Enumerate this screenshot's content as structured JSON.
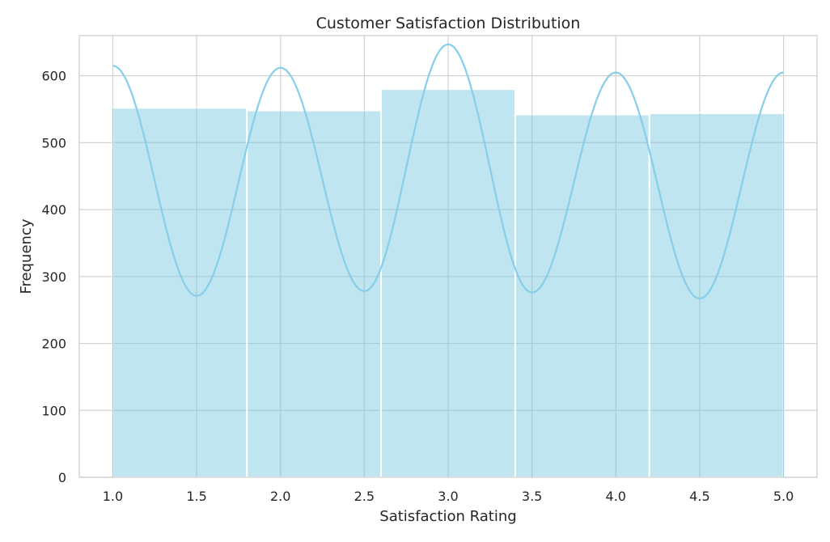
{
  "chart_data": {
    "type": "bar",
    "title": "Customer Satisfaction Distribution",
    "xlabel": "Satisfaction Rating",
    "ylabel": "Frequency",
    "xlim": [
      0.8,
      5.2
    ],
    "ylim": [
      0,
      660
    ],
    "xticks": [
      1.0,
      1.5,
      2.0,
      2.5,
      3.0,
      3.5,
      4.0,
      4.5,
      5.0
    ],
    "xtick_labels": [
      "1.0",
      "1.5",
      "2.0",
      "2.5",
      "3.0",
      "3.5",
      "4.0",
      "4.5",
      "5.0"
    ],
    "yticks": [
      0,
      100,
      200,
      300,
      400,
      500,
      600
    ],
    "ytick_labels": [
      "0",
      "100",
      "200",
      "300",
      "400",
      "500",
      "600"
    ],
    "grid": true,
    "bins": [
      {
        "x0": 1.0,
        "x1": 1.8,
        "value": 552
      },
      {
        "x0": 1.8,
        "x1": 2.6,
        "value": 548
      },
      {
        "x0": 2.6,
        "x1": 3.4,
        "value": 580
      },
      {
        "x0": 3.4,
        "x1": 4.2,
        "value": 542
      },
      {
        "x0": 4.2,
        "x1": 5.0,
        "value": 544
      }
    ],
    "kde": {
      "x": [
        1.0,
        1.5,
        2.0,
        2.5,
        3.0,
        3.5,
        4.0,
        4.5,
        5.0
      ],
      "y": [
        615,
        271,
        612,
        278,
        647,
        276,
        605,
        267,
        605
      ]
    },
    "colors": {
      "bar": "#bee5f0",
      "line": "#87ceeb",
      "grid": "#d3d3d3",
      "edge": "#ffffff"
    }
  }
}
